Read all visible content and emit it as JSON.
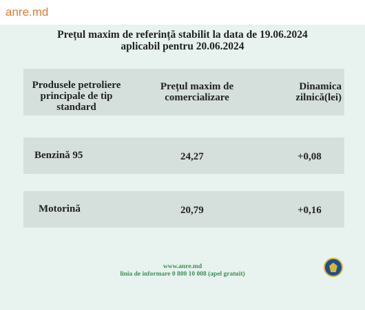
{
  "header": {
    "brand": "anre.md"
  },
  "notice": {
    "title_line1": "Prețul maxim de referință stabilit la data de 19.06.2024",
    "title_line2": "aplicabil pentru 20.06.2024",
    "columns": [
      "Produsele petroliere principale de tip standard",
      "Prețul maxim de comercializare",
      "Dinamica zilnică(lei)"
    ],
    "rows": [
      {
        "product": "Benzină 95",
        "price": "24,27",
        "change": "+0,08"
      },
      {
        "product": "Motorină",
        "price": "20,79",
        "change": "+0,16"
      }
    ],
    "footer_line1": "www.anre.md",
    "footer_line2": "linia de informare 0 800 10 008 (apel gratuit)"
  },
  "colors": {
    "brand": "#e07a2f",
    "panel_bg": "#e8f2ef",
    "row_bg": "#d5dfdc",
    "footer_text": "#3c8f4e"
  },
  "icons": {
    "emblem": "anre-emblem-icon"
  }
}
